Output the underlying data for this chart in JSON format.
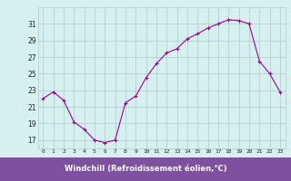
{
  "x": [
    0,
    1,
    2,
    3,
    4,
    5,
    6,
    7,
    8,
    9,
    10,
    11,
    12,
    13,
    14,
    15,
    16,
    17,
    18,
    19,
    20,
    21,
    22,
    23
  ],
  "y": [
    22.0,
    22.8,
    21.8,
    19.2,
    18.3,
    17.0,
    16.7,
    17.0,
    21.5,
    22.3,
    24.5,
    26.2,
    27.5,
    28.0,
    29.2,
    29.8,
    30.5,
    31.0,
    31.5,
    31.4,
    31.0,
    26.5,
    25.0,
    22.8
  ],
  "xlim": [
    -0.5,
    23.5
  ],
  "ylim": [
    16.0,
    33.0
  ],
  "yticks": [
    17,
    19,
    21,
    23,
    25,
    27,
    29,
    31
  ],
  "xticks": [
    0,
    1,
    2,
    3,
    4,
    5,
    6,
    7,
    8,
    9,
    10,
    11,
    12,
    13,
    14,
    15,
    16,
    17,
    18,
    19,
    20,
    21,
    22,
    23
  ],
  "xlabel": "Windchill (Refroidissement éolien,°C)",
  "line_color": "#990099",
  "marker": "+",
  "bg_color": "#d6f0f0",
  "grid_color": "#aacccc",
  "xlabel_color": "#ffffff",
  "xlabel_bg": "#8050a0"
}
